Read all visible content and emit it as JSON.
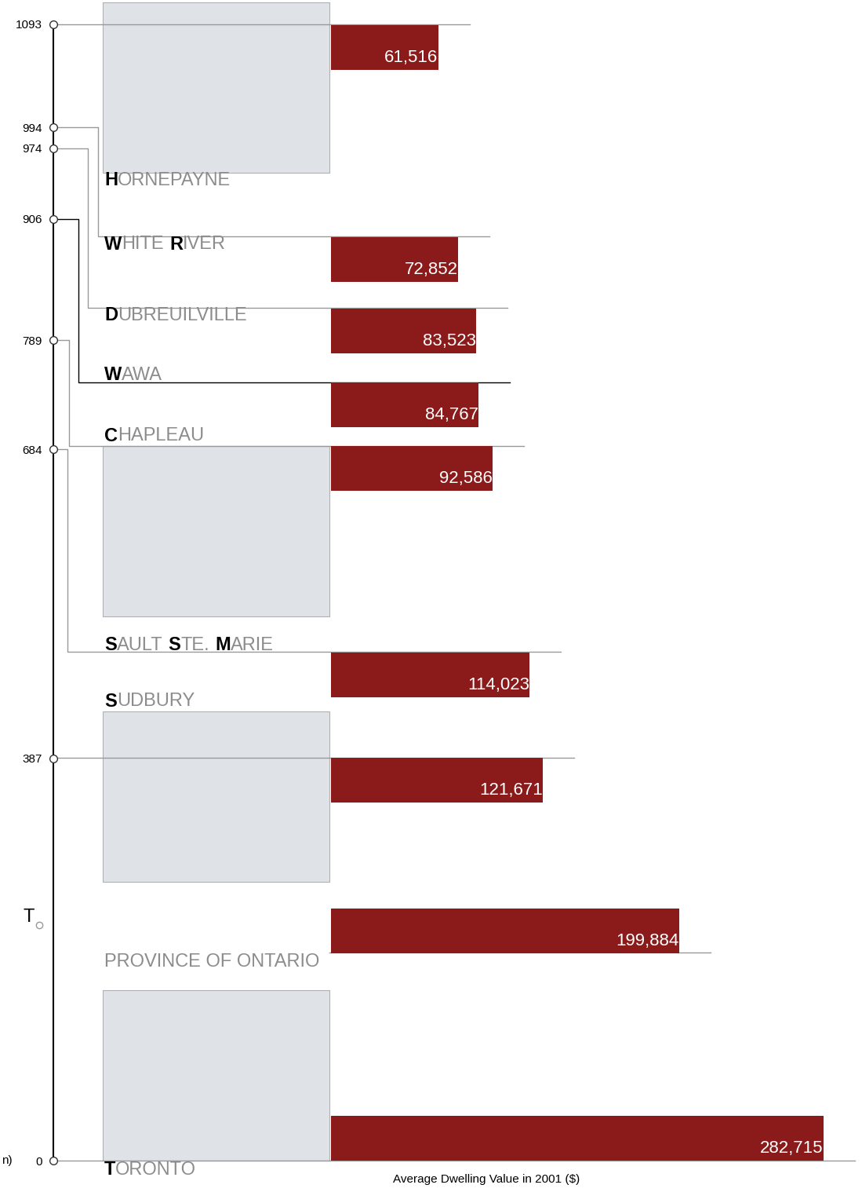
{
  "chart_data": {
    "type": "bar",
    "orientation": "horizontal",
    "xlabel": "Average Dwelling Value in 2001 ($)",
    "categories": [
      "HORNEPAYNE",
      "WHITE RIVER",
      "DUBREUILVILLE",
      "WAWA",
      "CHAPLEAU",
      "SAULT STE. MARIE",
      "SUDBURY",
      "PROVINCE OF ONTARIO",
      "TORONTO"
    ],
    "values": [
      61516,
      72852,
      83523,
      84767,
      92586,
      114023,
      121671,
      199884,
      282715
    ],
    "value_labels": [
      "61,516",
      "72,852",
      "83,523",
      "84,767",
      "92,586",
      "114,023",
      "121,671",
      "199,884",
      "282,715"
    ],
    "data_labels": true,
    "color": "#8b1a1a",
    "xlim": [
      0,
      300000
    ],
    "tick_labels": "y",
    "distances": [
      1093,
      994,
      974,
      906,
      789,
      684,
      387,
      null,
      0
    ],
    "ylim": [
      0,
      1093
    ],
    "yticks": [
      0,
      387,
      684,
      789,
      906,
      974,
      994,
      1093
    ],
    "ylabel": "n)",
    "annotations": [
      "T"
    ]
  }
}
